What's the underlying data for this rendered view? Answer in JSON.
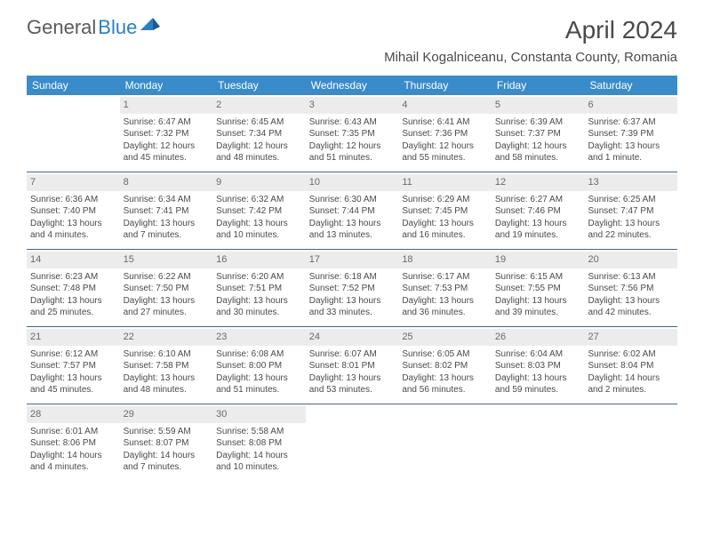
{
  "logo": {
    "text1": "General",
    "text2": "Blue"
  },
  "title": "April 2024",
  "location": "Mihail Kogalniceanu, Constanta County, Romania",
  "day_headers": [
    "Sunday",
    "Monday",
    "Tuesday",
    "Wednesday",
    "Thursday",
    "Friday",
    "Saturday"
  ],
  "colors": {
    "header_bg": "#3a8bc9",
    "header_text": "#ffffff",
    "daynum_bg": "#ececec",
    "rule": "#3a6a8a",
    "text": "#4a4a4a",
    "logo_blue": "#2b7fc3"
  },
  "weeks": [
    [
      {
        "n": "",
        "empty": true
      },
      {
        "n": "1",
        "sr": "Sunrise: 6:47 AM",
        "ss": "Sunset: 7:32 PM",
        "dl1": "Daylight: 12 hours",
        "dl2": "and 45 minutes."
      },
      {
        "n": "2",
        "sr": "Sunrise: 6:45 AM",
        "ss": "Sunset: 7:34 PM",
        "dl1": "Daylight: 12 hours",
        "dl2": "and 48 minutes."
      },
      {
        "n": "3",
        "sr": "Sunrise: 6:43 AM",
        "ss": "Sunset: 7:35 PM",
        "dl1": "Daylight: 12 hours",
        "dl2": "and 51 minutes."
      },
      {
        "n": "4",
        "sr": "Sunrise: 6:41 AM",
        "ss": "Sunset: 7:36 PM",
        "dl1": "Daylight: 12 hours",
        "dl2": "and 55 minutes."
      },
      {
        "n": "5",
        "sr": "Sunrise: 6:39 AM",
        "ss": "Sunset: 7:37 PM",
        "dl1": "Daylight: 12 hours",
        "dl2": "and 58 minutes."
      },
      {
        "n": "6",
        "sr": "Sunrise: 6:37 AM",
        "ss": "Sunset: 7:39 PM",
        "dl1": "Daylight: 13 hours",
        "dl2": "and 1 minute."
      }
    ],
    [
      {
        "n": "7",
        "sr": "Sunrise: 6:36 AM",
        "ss": "Sunset: 7:40 PM",
        "dl1": "Daylight: 13 hours",
        "dl2": "and 4 minutes."
      },
      {
        "n": "8",
        "sr": "Sunrise: 6:34 AM",
        "ss": "Sunset: 7:41 PM",
        "dl1": "Daylight: 13 hours",
        "dl2": "and 7 minutes."
      },
      {
        "n": "9",
        "sr": "Sunrise: 6:32 AM",
        "ss": "Sunset: 7:42 PM",
        "dl1": "Daylight: 13 hours",
        "dl2": "and 10 minutes."
      },
      {
        "n": "10",
        "sr": "Sunrise: 6:30 AM",
        "ss": "Sunset: 7:44 PM",
        "dl1": "Daylight: 13 hours",
        "dl2": "and 13 minutes."
      },
      {
        "n": "11",
        "sr": "Sunrise: 6:29 AM",
        "ss": "Sunset: 7:45 PM",
        "dl1": "Daylight: 13 hours",
        "dl2": "and 16 minutes."
      },
      {
        "n": "12",
        "sr": "Sunrise: 6:27 AM",
        "ss": "Sunset: 7:46 PM",
        "dl1": "Daylight: 13 hours",
        "dl2": "and 19 minutes."
      },
      {
        "n": "13",
        "sr": "Sunrise: 6:25 AM",
        "ss": "Sunset: 7:47 PM",
        "dl1": "Daylight: 13 hours",
        "dl2": "and 22 minutes."
      }
    ],
    [
      {
        "n": "14",
        "sr": "Sunrise: 6:23 AM",
        "ss": "Sunset: 7:48 PM",
        "dl1": "Daylight: 13 hours",
        "dl2": "and 25 minutes."
      },
      {
        "n": "15",
        "sr": "Sunrise: 6:22 AM",
        "ss": "Sunset: 7:50 PM",
        "dl1": "Daylight: 13 hours",
        "dl2": "and 27 minutes."
      },
      {
        "n": "16",
        "sr": "Sunrise: 6:20 AM",
        "ss": "Sunset: 7:51 PM",
        "dl1": "Daylight: 13 hours",
        "dl2": "and 30 minutes."
      },
      {
        "n": "17",
        "sr": "Sunrise: 6:18 AM",
        "ss": "Sunset: 7:52 PM",
        "dl1": "Daylight: 13 hours",
        "dl2": "and 33 minutes."
      },
      {
        "n": "18",
        "sr": "Sunrise: 6:17 AM",
        "ss": "Sunset: 7:53 PM",
        "dl1": "Daylight: 13 hours",
        "dl2": "and 36 minutes."
      },
      {
        "n": "19",
        "sr": "Sunrise: 6:15 AM",
        "ss": "Sunset: 7:55 PM",
        "dl1": "Daylight: 13 hours",
        "dl2": "and 39 minutes."
      },
      {
        "n": "20",
        "sr": "Sunrise: 6:13 AM",
        "ss": "Sunset: 7:56 PM",
        "dl1": "Daylight: 13 hours",
        "dl2": "and 42 minutes."
      }
    ],
    [
      {
        "n": "21",
        "sr": "Sunrise: 6:12 AM",
        "ss": "Sunset: 7:57 PM",
        "dl1": "Daylight: 13 hours",
        "dl2": "and 45 minutes."
      },
      {
        "n": "22",
        "sr": "Sunrise: 6:10 AM",
        "ss": "Sunset: 7:58 PM",
        "dl1": "Daylight: 13 hours",
        "dl2": "and 48 minutes."
      },
      {
        "n": "23",
        "sr": "Sunrise: 6:08 AM",
        "ss": "Sunset: 8:00 PM",
        "dl1": "Daylight: 13 hours",
        "dl2": "and 51 minutes."
      },
      {
        "n": "24",
        "sr": "Sunrise: 6:07 AM",
        "ss": "Sunset: 8:01 PM",
        "dl1": "Daylight: 13 hours",
        "dl2": "and 53 minutes."
      },
      {
        "n": "25",
        "sr": "Sunrise: 6:05 AM",
        "ss": "Sunset: 8:02 PM",
        "dl1": "Daylight: 13 hours",
        "dl2": "and 56 minutes."
      },
      {
        "n": "26",
        "sr": "Sunrise: 6:04 AM",
        "ss": "Sunset: 8:03 PM",
        "dl1": "Daylight: 13 hours",
        "dl2": "and 59 minutes."
      },
      {
        "n": "27",
        "sr": "Sunrise: 6:02 AM",
        "ss": "Sunset: 8:04 PM",
        "dl1": "Daylight: 14 hours",
        "dl2": "and 2 minutes."
      }
    ],
    [
      {
        "n": "28",
        "sr": "Sunrise: 6:01 AM",
        "ss": "Sunset: 8:06 PM",
        "dl1": "Daylight: 14 hours",
        "dl2": "and 4 minutes."
      },
      {
        "n": "29",
        "sr": "Sunrise: 5:59 AM",
        "ss": "Sunset: 8:07 PM",
        "dl1": "Daylight: 14 hours",
        "dl2": "and 7 minutes."
      },
      {
        "n": "30",
        "sr": "Sunrise: 5:58 AM",
        "ss": "Sunset: 8:08 PM",
        "dl1": "Daylight: 14 hours",
        "dl2": "and 10 minutes."
      },
      {
        "n": "",
        "empty": true
      },
      {
        "n": "",
        "empty": true
      },
      {
        "n": "",
        "empty": true
      },
      {
        "n": "",
        "empty": true
      }
    ]
  ]
}
